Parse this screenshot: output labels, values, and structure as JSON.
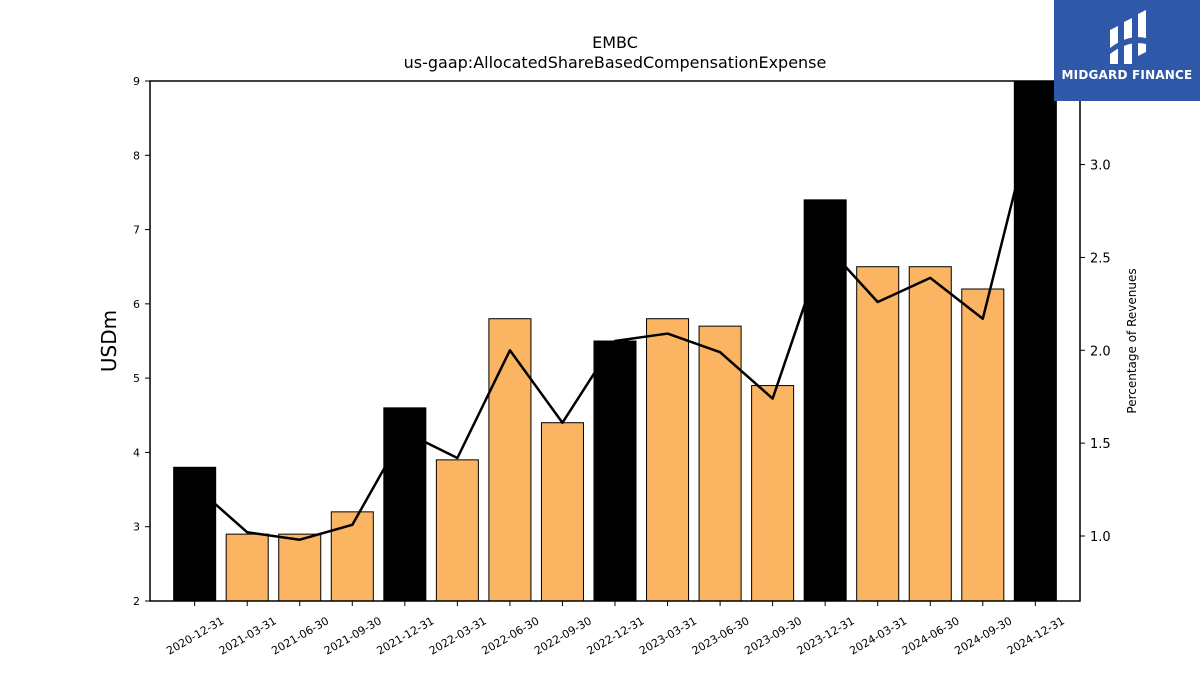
{
  "chart_data": {
    "type": "bar",
    "title": "EMBC",
    "subtitle": "us-gaap:AllocatedShareBasedCompensationExpense",
    "ylabel": "USDm",
    "y2label": "Percentage of Revenues",
    "categories": [
      "2020-12-31",
      "2021-03-31",
      "2021-06-30",
      "2021-09-30",
      "2021-12-31",
      "2022-03-31",
      "2022-06-30",
      "2022-09-30",
      "2022-12-31",
      "2023-03-31",
      "2023-06-30",
      "2023-09-30",
      "2023-12-31",
      "2024-03-31",
      "2024-06-30",
      "2024-09-30",
      "2024-12-31"
    ],
    "series": [
      {
        "type": "bar",
        "values": [
          3.8,
          2.9,
          2.9,
          3.2,
          4.6,
          3.9,
          5.8,
          4.4,
          5.5,
          5.8,
          5.7,
          4.9,
          7.4,
          6.5,
          6.5,
          6.2,
          9.0
        ],
        "colors": [
          "#000000",
          "#fbb462",
          "#fbb462",
          "#fbb462",
          "#000000",
          "#fbb462",
          "#fbb462",
          "#fbb462",
          "#000000",
          "#fbb462",
          "#fbb462",
          "#fbb462",
          "#000000",
          "#fbb462",
          "#fbb462",
          "#fbb462",
          "#000000"
        ]
      },
      {
        "type": "line",
        "axis": "right",
        "values": [
          1.27,
          1.02,
          0.98,
          1.06,
          1.56,
          1.42,
          2.0,
          1.61,
          2.05,
          2.09,
          1.99,
          1.74,
          2.57,
          2.26,
          2.39,
          2.17,
          3.3
        ],
        "color": "#000000"
      }
    ],
    "ylim": [
      2,
      9
    ],
    "yticks": [
      2,
      3,
      4,
      5,
      6,
      7,
      8,
      9
    ],
    "y2lim": [
      0.65,
      3.45
    ],
    "y2ticks": [
      "1.0",
      "1.5",
      "2.0",
      "2.5",
      "3.0"
    ],
    "grid": false,
    "legend": "none"
  },
  "logo": {
    "text": "MIDGARD FINANCE",
    "background": "#2f59a8"
  }
}
